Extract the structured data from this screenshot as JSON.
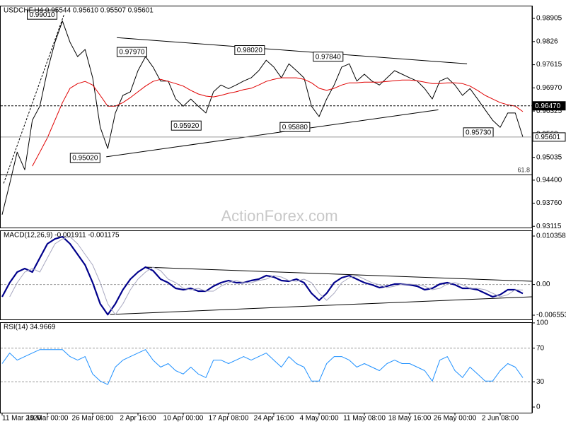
{
  "chart_data": [
    {
      "type": "line",
      "title": "USDCHF,H4 0.95544 0.95610 0.95507 0.95601",
      "watermark": "ActionForex.com",
      "ylim": [
        0.9308,
        0.9926
      ],
      "yticks": [
        0.98905,
        0.9826,
        0.97615,
        {
          "value": 0.9697,
          "label": "0.96970"
        },
        0.96325,
        0.9568,
        0.95035,
        {
          "value": 0.944,
          "label": "0.94400"
        },
        {
          "value": 0.9376,
          "label": "0.93760"
        },
        0.93115
      ],
      "series": [
        {
          "color": "#000000",
          "values": [
            0.9344,
            0.943,
            0.9518,
            0.9469,
            0.9607,
            0.9646,
            0.9745,
            0.9824,
            0.9883,
            0.9824,
            0.9784,
            0.9804,
            0.9725,
            0.9587,
            0.9528,
            0.9627,
            0.9676,
            0.9686,
            0.9745,
            0.9784,
            0.9755,
            0.9716,
            0.9716,
            0.9666,
            0.9646,
            0.9666,
            0.9646,
            0.9627,
            0.9686,
            0.9705,
            0.9695,
            0.9705,
            0.9716,
            0.9725,
            0.9745,
            0.9774,
            0.9755,
            0.9725,
            0.9764,
            0.9745,
            0.9725,
            0.9646,
            0.9617,
            0.9666,
            0.9705,
            0.9755,
            0.9764,
            0.9716,
            0.9735,
            0.9716,
            0.9705,
            0.9725,
            0.9745,
            0.9735,
            0.9725,
            0.9716,
            0.9695,
            0.9666,
            0.9716,
            0.9725,
            0.9705,
            0.9676,
            0.9695,
            0.9666,
            0.9636,
            0.9607,
            0.9587,
            0.9627,
            0.9627,
            0.95601
          ]
        },
        {
          "color": "#e00000",
          "values": [
            null,
            null,
            null,
            null,
            0.9479,
            0.9518,
            0.9558,
            0.9607,
            0.9656,
            0.9696,
            0.9709,
            0.9715,
            0.9705,
            0.9676,
            0.9646,
            0.9646,
            0.9656,
            0.967,
            0.9686,
            0.9702,
            0.9715,
            0.9721,
            0.9715,
            0.9709,
            0.9702,
            0.969,
            0.968,
            0.9674,
            0.9672,
            0.9676,
            0.9682,
            0.9686,
            0.9692,
            0.9696,
            0.9705,
            0.9715,
            0.9721,
            0.9725,
            0.9725,
            0.9725,
            0.9721,
            0.9711,
            0.9696,
            0.969,
            0.9696,
            0.9705,
            0.9711,
            0.9711,
            0.9713,
            0.9713,
            0.9713,
            0.9715,
            0.9717,
            0.9719,
            0.9719,
            0.9717,
            0.9713,
            0.9709,
            0.9709,
            0.9711,
            0.9711,
            0.9709,
            0.9702,
            0.969,
            0.9676,
            0.9666,
            0.9656,
            0.965,
            0.9646,
            0.9631
          ]
        }
      ],
      "level_lines": [
        {
          "value": 0.9647,
          "label": "0.96470",
          "dashed": true
        },
        {
          "value": 0.95601,
          "color": "#999999"
        }
      ],
      "fib_levels": [
        {
          "value": 0.9455,
          "label": "61.8"
        }
      ],
      "trendlines": [
        {
          "x": [
            15.2,
            61.6
          ],
          "y": [
            0.9837,
            0.9764
          ]
        },
        {
          "x": [
            13.8,
            57.8
          ],
          "y": [
            0.9505,
            0.9636
          ]
        },
        {
          "x": [
            0.2,
            8.2
          ],
          "y": [
            0.9431,
            0.9901
          ],
          "dashed": true
        }
      ],
      "annotations": [
        {
          "x": 5.3,
          "value": 0.9901,
          "label": "0.99010"
        },
        {
          "x": 17.2,
          "value": 0.9797,
          "label": "0.97970"
        },
        {
          "x": 32.8,
          "value": 0.9802,
          "label": "0.98020"
        },
        {
          "x": 43.2,
          "value": 0.9784,
          "label": "0.97840"
        },
        {
          "x": 24.4,
          "value": 0.9592,
          "label": "0.95920"
        },
        {
          "x": 38.8,
          "value": 0.9588,
          "label": "0.95880"
        },
        {
          "x": 63.1,
          "value": 0.9573,
          "label": "0.95730"
        },
        {
          "x": 11,
          "value": 0.9502,
          "label": "0.95020"
        }
      ]
    },
    {
      "type": "line",
      "title": "MACD(12,26,9) -0.001911 -0.001175",
      "ylim": [
        -0.00746,
        0.01157
      ],
      "yticks": [
        0.010358,
        {
          "value": 0,
          "label": "0.00"
        },
        -0.006553
      ],
      "dashed_levels": [
        0
      ],
      "series": [
        {
          "color": "#00008b",
          "values": [
            -0.00263,
            0.00039,
            0.00266,
            0.00341,
            0.00266,
            0.00568,
            0.0087,
            0.00975,
            0.01021,
            0.0087,
            0.00643,
            0.00417,
            0.00039,
            -0.00414,
            -0.00643,
            -0.00414,
            -0.00112,
            0.00115,
            0.00266,
            0.00372,
            0.00296,
            0.00115,
            0.00039,
            -0.00082,
            -0.00112,
            -0.00082,
            -0.00142,
            -0.00142,
            -0.00036,
            0.00039,
            0.00085,
            0.00039,
            0.00039,
            0.00085,
            0.00115,
            0.0019,
            0.0016,
            0.00085,
            0.00069,
            0.00115,
            0.00039,
            -0.00187,
            -0.00338,
            -0.00187,
            0.00039,
            0.00145,
            0.0019,
            0.00115,
            0.00039,
            -6e-05,
            -0.00066,
            -0.00036,
            9e-05,
            9e-05,
            -6e-05,
            -0.00036,
            -0.00112,
            -0.00082,
            9e-05,
            0.00039,
            -6e-05,
            -0.00082,
            -0.00082,
            -0.00112,
            -0.00187,
            -0.00263,
            -0.00217,
            -0.00112,
            -0.00112,
            -0.001911
          ]
        },
        {
          "color": "#a8a8c0",
          "values": [
            null,
            -0.00263,
            0.00039,
            0.00266,
            0.00341,
            0.00266,
            0.00568,
            0.0087,
            0.00975,
            0.01021,
            0.0087,
            0.00643,
            0.00417,
            0.00039,
            -0.00414,
            -0.00643,
            -0.00414,
            -0.00112,
            0.00115,
            0.00266,
            0.00372,
            0.00296,
            0.00115,
            0.00039,
            -0.00082,
            -0.00112,
            -0.00082,
            -0.00142,
            -0.00142,
            -0.00036,
            0.00039,
            0.00085,
            0.00039,
            0.00039,
            0.00085,
            0.00115,
            0.0019,
            0.0016,
            0.00085,
            0.00069,
            0.00115,
            0.00039,
            -0.00187,
            -0.00338,
            -0.00187,
            0.00039,
            0.00145,
            0.0019,
            0.00115,
            0.00039,
            -6e-05,
            -0.00066,
            -0.00036,
            9e-05,
            9e-05,
            -6e-05,
            -0.00036,
            -0.00112,
            -0.00082,
            9e-05,
            0.00039,
            -6e-05,
            -0.00082,
            -0.00082,
            -0.00112,
            -0.00187,
            -0.00263,
            -0.00217,
            -0.00112,
            -0.001175
          ]
        }
      ],
      "trendlines": [
        {
          "x": [
            18.9,
            70.2
          ],
          "y": [
            0.00371,
            0.00069
          ]
        },
        {
          "x": [
            14.3,
            70.2
          ],
          "y": [
            -0.0064,
            -0.00263
          ]
        }
      ]
    },
    {
      "type": "line",
      "title": "RSI(14) 34.9669",
      "ylim": [
        -6.7,
        100.8
      ],
      "yticks": [
        100,
        70,
        30,
        0
      ],
      "dashed_levels": [
        70,
        30
      ],
      "categories": [
        "11 Mar 2020",
        null,
        null,
        null,
        null,
        null,
        "19 Mar 00:00",
        null,
        null,
        null,
        null,
        null,
        "26 Mar 08:00",
        null,
        null,
        null,
        null,
        null,
        "2 Apr 16:00",
        null,
        null,
        null,
        null,
        null,
        "10 Apr 00:00",
        null,
        null,
        null,
        null,
        null,
        "17 Apr 08:00",
        null,
        null,
        null,
        null,
        null,
        "24 Apr 16:00",
        null,
        null,
        null,
        null,
        null,
        "4 May 00:00",
        null,
        null,
        null,
        null,
        null,
        "11 May 08:00",
        null,
        null,
        null,
        null,
        null,
        "18 May 16:00",
        null,
        null,
        null,
        null,
        null,
        "26 May 00:00",
        null,
        null,
        null,
        null,
        null,
        "2 Jun 08:00",
        null,
        null,
        null
      ],
      "series": [
        {
          "color": "#1e90ff",
          "values": [
            51.7,
            64.2,
            55.8,
            60,
            64.2,
            68.3,
            68.3,
            68.3,
            68.3,
            60,
            55.8,
            60,
            39.2,
            30.8,
            26.7,
            47.5,
            55.8,
            60,
            64.2,
            68.3,
            55.8,
            47.5,
            51.7,
            43.3,
            39.2,
            47.5,
            39.2,
            35,
            55.8,
            55.8,
            51.7,
            55.8,
            60,
            55.8,
            60,
            64.2,
            55.8,
            47.5,
            60,
            51.7,
            47.5,
            30.8,
            30.8,
            51.7,
            60,
            60,
            55.8,
            47.5,
            51.7,
            47.5,
            43.3,
            51.7,
            55.8,
            51.7,
            51.7,
            47.5,
            43.3,
            30.8,
            55.8,
            60,
            43.3,
            35,
            47.5,
            39.2,
            30.8,
            30.8,
            43.3,
            51.7,
            47.5,
            34.9669
          ]
        }
      ]
    }
  ]
}
